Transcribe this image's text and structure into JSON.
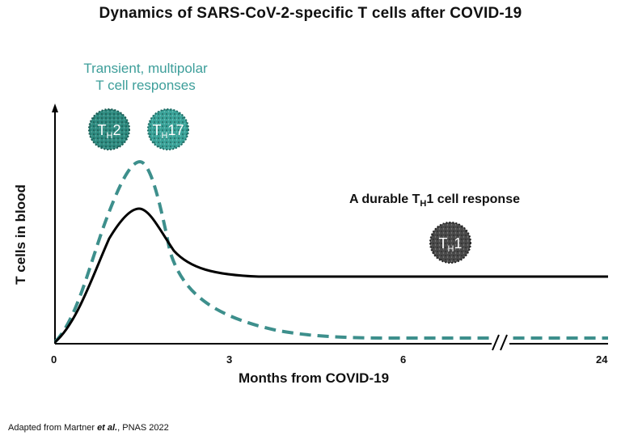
{
  "title": "Dynamics of SARS-CoV-2-specific T cells after COVID-19",
  "annotations": {
    "transient_line1": "Transient, multipolar",
    "transient_line2": "T cell responses",
    "durable_prefix": "A durable T",
    "durable_sub": "H",
    "durable_suffix": "1 cell response"
  },
  "cells": [
    {
      "name": "TH2",
      "label_main": "T",
      "label_sub": "H",
      "label_suffix": "2",
      "color": "#2e8b80"
    },
    {
      "name": "TH17",
      "label_main": "T",
      "label_sub": "H",
      "label_suffix": "17",
      "color": "#3aa399"
    },
    {
      "name": "TH1",
      "label_main": "T",
      "label_sub": "H",
      "label_suffix": "1",
      "color": "#4a4a4a"
    }
  ],
  "axes": {
    "ylabel": "T cells in blood",
    "xlabel": "Months from COVID-19",
    "xticks": [
      "0",
      "3",
      "6",
      "24"
    ]
  },
  "series": [
    {
      "name": "TH1",
      "style": "solid",
      "color": "#000000"
    },
    {
      "name": "multipolar",
      "style": "dashed",
      "color": "#3d8f8c"
    }
  ],
  "source": {
    "prefix": "Adapted from Martner ",
    "italic": "et al.",
    "suffix": ", PNAS 2022"
  }
}
